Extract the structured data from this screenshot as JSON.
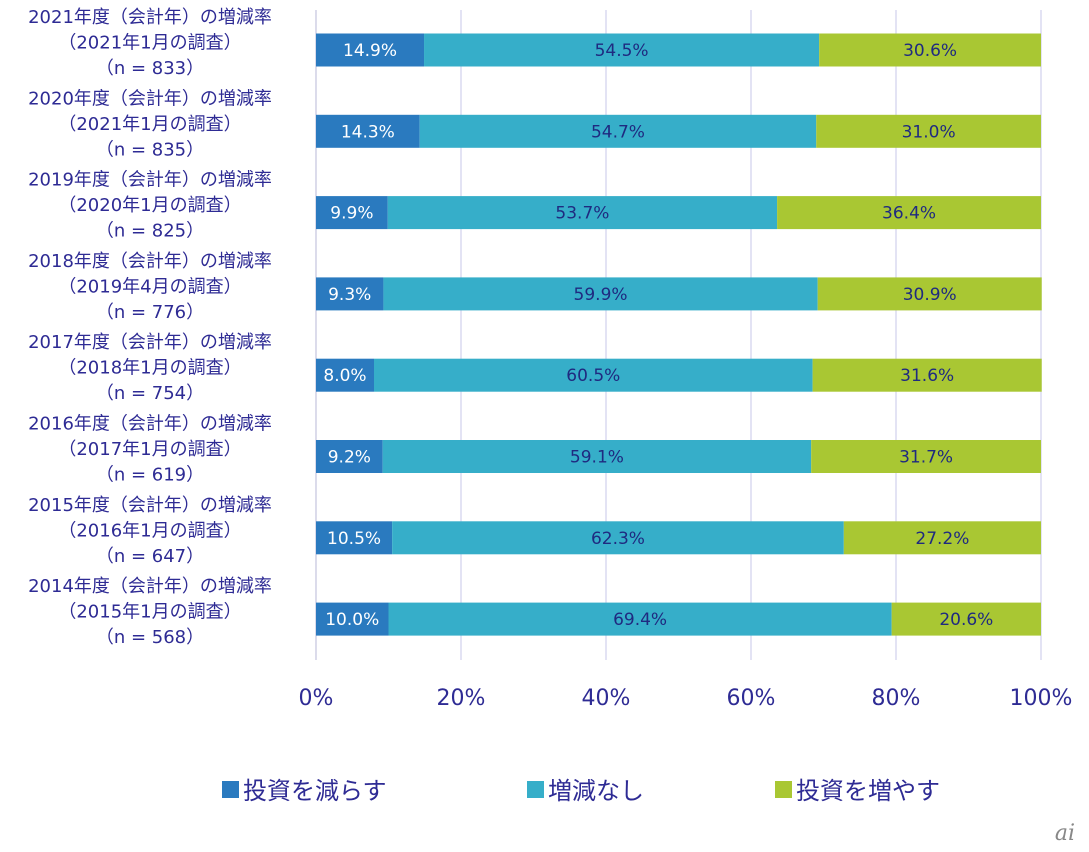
{
  "chart_data": {
    "type": "bar",
    "orientation": "horizontal",
    "stacked": true,
    "categories": [
      [
        "2021年度（会計年）の増減率",
        "（2021年1月の調査）",
        "（n = 833）"
      ],
      [
        "2020年度（会計年）の増減率",
        "（2021年1月の調査）",
        "（n = 835）"
      ],
      [
        "2019年度（会計年）の増減率",
        "（2020年1月の調査）",
        "（n = 825）"
      ],
      [
        "2018年度（会計年）の増減率",
        "（2019年4月の調査）",
        "（n = 776）"
      ],
      [
        "2017年度（会計年）の増減率",
        "（2018年1月の調査）",
        "（n = 754）"
      ],
      [
        "2016年度（会計年）の増減率",
        "（2017年1月の調査）",
        "（n = 619）"
      ],
      [
        "2015年度（会計年）の増減率",
        "（2016年1月の調査）",
        "（n = 647）"
      ],
      [
        "2014年度（会計年）の増減率",
        "（2015年1月の調査）",
        "（n = 568）"
      ]
    ],
    "series": [
      {
        "name": "投資を減らす",
        "color": "#2a7abf",
        "label_color": "#ffffff",
        "values": [
          14.9,
          14.3,
          9.9,
          9.3,
          8.0,
          9.2,
          10.5,
          10.0
        ]
      },
      {
        "name": "増減なし",
        "color": "#36aec9",
        "label_color": "#1f2a80",
        "values": [
          54.5,
          54.7,
          53.7,
          59.9,
          60.5,
          59.1,
          62.3,
          69.4
        ]
      },
      {
        "name": "投資を増やす",
        "color": "#a9c733",
        "label_color": "#1f2a80",
        "values": [
          30.6,
          31.0,
          36.4,
          30.9,
          31.6,
          31.7,
          27.2,
          20.6
        ]
      }
    ],
    "xlim": [
      0,
      100
    ],
    "xticks": [
      "0%",
      "20%",
      "40%",
      "60%",
      "80%",
      "100%"
    ],
    "grid": true,
    "legend_position": "bottom",
    "title": "",
    "xlabel": "",
    "ylabel": ""
  },
  "watermark": "ai"
}
